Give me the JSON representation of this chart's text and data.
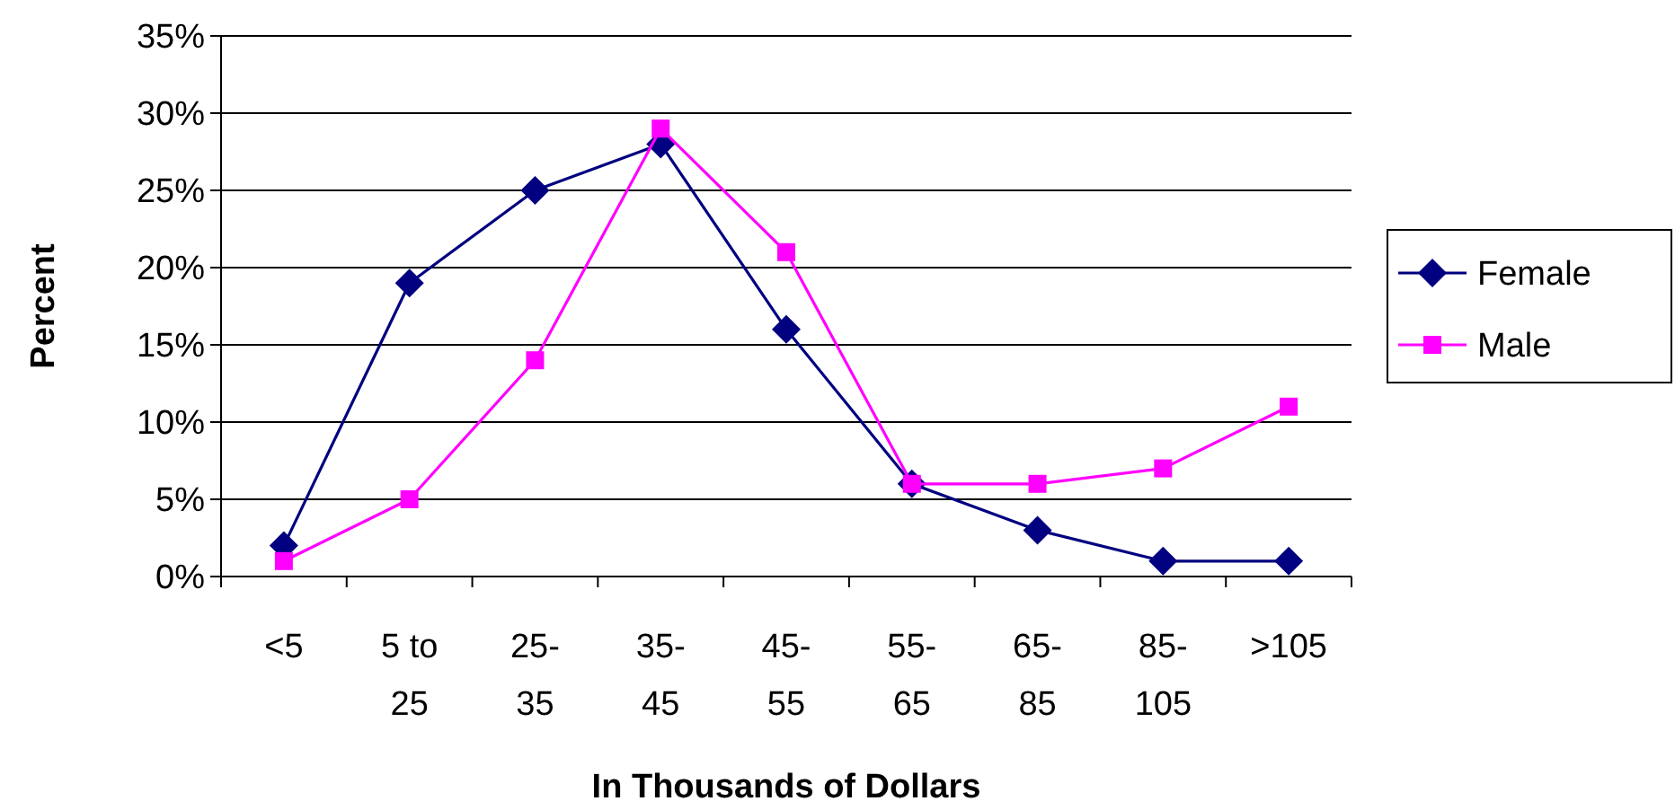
{
  "chart_data": {
    "type": "line",
    "xlabel": "In Thousands of Dollars",
    "ylabel": "Percent",
    "categories": [
      "<5",
      "5 to 25",
      "25-35",
      "35-45",
      "45-55",
      "55-65",
      "65-85",
      "85-105",
      ">105"
    ],
    "series": [
      {
        "name": "Female",
        "color": "#000080",
        "marker": "diamond",
        "values": [
          2,
          19,
          25,
          28,
          16,
          6,
          3,
          1,
          1
        ]
      },
      {
        "name": "Male",
        "color": "#ff00ff",
        "marker": "square",
        "values": [
          1,
          5,
          14,
          29,
          21,
          6,
          6,
          7,
          11
        ]
      }
    ],
    "ylim": [
      0,
      35
    ],
    "yticks": [
      {
        "value": 0,
        "label": "0%"
      },
      {
        "value": 5,
        "label": "5%"
      },
      {
        "value": 10,
        "label": "10%"
      },
      {
        "value": 15,
        "label": "15%"
      },
      {
        "value": 20,
        "label": "20%"
      },
      {
        "value": 25,
        "label": "25%"
      },
      {
        "value": 30,
        "label": "30%"
      },
      {
        "value": 35,
        "label": "35%"
      }
    ],
    "grid": "y",
    "legend": "right",
    "line_style": "solid"
  }
}
